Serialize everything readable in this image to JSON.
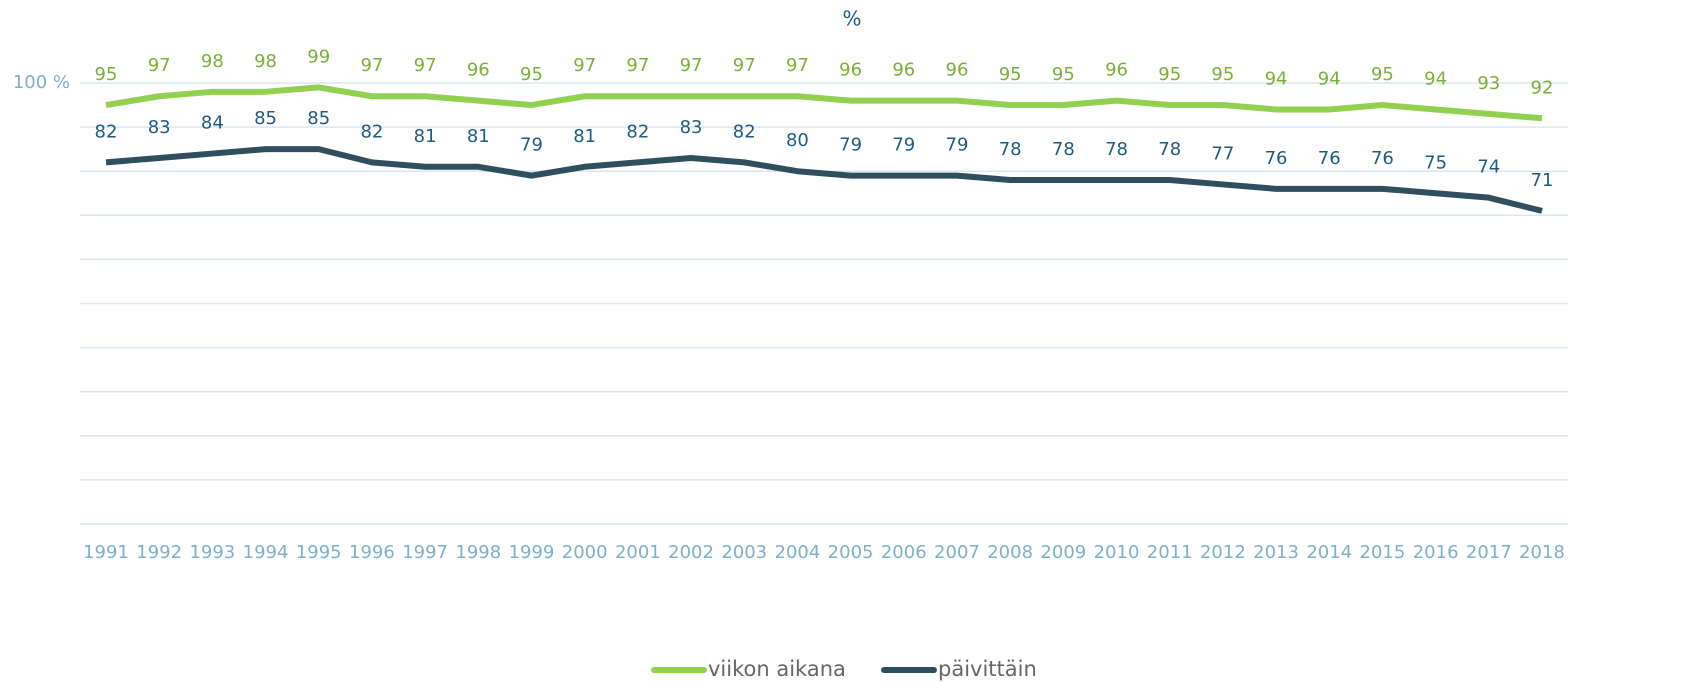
{
  "chart_data": {
    "type": "line",
    "title": "%",
    "categories": [
      "1991",
      "1992",
      "1993",
      "1994",
      "1995",
      "1996",
      "1997",
      "1998",
      "1999",
      "2000",
      "2001",
      "2002",
      "2003",
      "2004",
      "2005",
      "2006",
      "2007",
      "2008",
      "2009",
      "2010",
      "2011",
      "2012",
      "2013",
      "2014",
      "2015",
      "2016",
      "2017",
      "2018"
    ],
    "series": [
      {
        "name": "viikon aikana",
        "color": "#92d050",
        "label_color": "#7ab03a",
        "values": [
          95,
          97,
          98,
          98,
          99,
          97,
          97,
          96,
          95,
          97,
          97,
          97,
          97,
          97,
          96,
          96,
          96,
          95,
          95,
          96,
          95,
          95,
          94,
          94,
          95,
          94,
          93,
          92
        ]
      },
      {
        "name": "päivittäin",
        "color": "#2f4f5f",
        "label_color": "#1f5b80",
        "values": [
          82,
          83,
          84,
          85,
          85,
          82,
          81,
          81,
          79,
          81,
          82,
          83,
          82,
          80,
          79,
          79,
          79,
          78,
          78,
          78,
          78,
          77,
          76,
          76,
          76,
          75,
          74,
          71
        ]
      }
    ],
    "ylim": [
      0,
      100
    ],
    "yticks": [
      {
        "value": 100,
        "label": "100 %"
      }
    ],
    "ygrid": [
      0,
      10,
      20,
      30,
      40,
      50,
      60,
      70,
      80,
      90,
      100
    ],
    "grid": true,
    "legend": "bottom"
  }
}
